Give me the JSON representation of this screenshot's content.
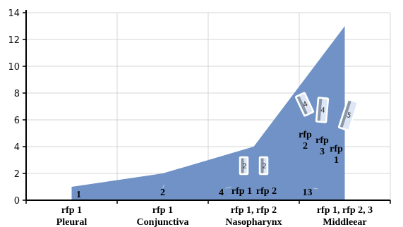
{
  "chart_data": {
    "type": "area",
    "categories": [
      {
        "line1": "rfp 1",
        "line2": "Pleural"
      },
      {
        "line1": "rfp 1",
        "line2": "Conjunctiva"
      },
      {
        "line1": "rfp 1, rfp 2",
        "line2": "Nasopharynx"
      },
      {
        "line1": "rfp 1, rfp 2, 3",
        "line2": "Middleear"
      }
    ],
    "values": [
      1,
      2,
      4,
      13
    ],
    "value_labels": [
      "1",
      "2",
      "4",
      "13"
    ],
    "ylim": [
      0,
      14
    ],
    "yticks": [
      "0",
      "2",
      "4",
      "6",
      "8",
      "10",
      "12",
      "14"
    ],
    "grid": true,
    "colors": {
      "area": "#7092C6",
      "grid": "#D6D6D6",
      "axis": "#000000",
      "box_fill": "#DCE6F5",
      "box_stroke": "#FFFFFF"
    },
    "annotations": {
      "nasopharynx": {
        "labels": [
          "rfp 1",
          "rfp 2"
        ],
        "boxes": [
          "2",
          "2"
        ]
      },
      "middleear": {
        "labels": [
          "rfp 2",
          "rfp 3",
          "rfp 1"
        ],
        "boxes": [
          "4",
          "4",
          "5"
        ]
      }
    }
  }
}
